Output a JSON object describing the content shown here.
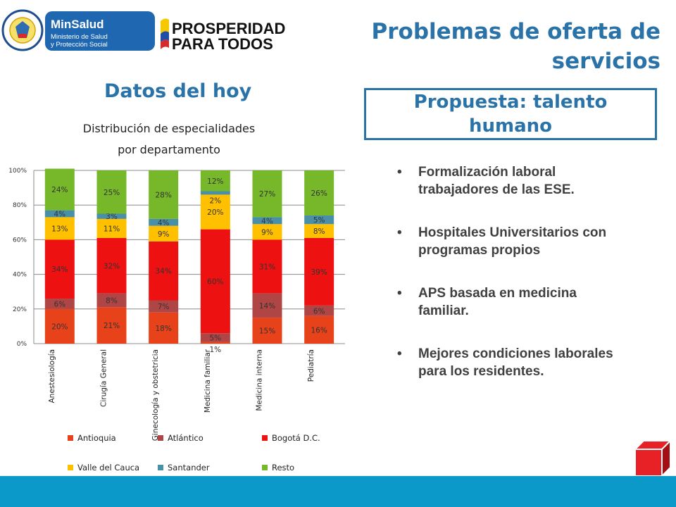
{
  "header": {
    "logo_minsalud": {
      "seal_text": "REPÚBLICA DE COLOMBIA",
      "brand": "MinSalud",
      "line1": "Ministerio de Salud",
      "line2": "y Protección Social"
    },
    "logo_prosperidad": {
      "line1": "PROSPERIDAD",
      "line2": "PARA TODOS"
    },
    "title": "Problemas de oferta de servicios"
  },
  "left_heading": "Datos del hoy",
  "proposal_heading": "Propuesta: talento humano",
  "bullets": [
    "Formalización laboral trabajadores de las ESE.",
    "Hospitales Universitarios con programas propios",
    "APS basada en medicina familiar.",
    "Mejores condiciones laborales para los residentes."
  ],
  "colors": {
    "accent_blue": "#2a73a8",
    "bottom_bar": "#0b99c9",
    "cube_red": "#e82127"
  },
  "chart_data": {
    "type": "bar",
    "stacked": true,
    "percent": true,
    "title": "Distribución de especialidades por departamento",
    "categories": [
      "Anestesiología",
      "Cirugía General",
      "Ginecología y obstetricia",
      "Medicina familiar",
      "Medicina interna",
      "Pediatría"
    ],
    "y_ticks": [
      "0%",
      "20%",
      "40%",
      "60%",
      "80%",
      "100%"
    ],
    "ylim": [
      0,
      100
    ],
    "grid": true,
    "legend_position": "bottom",
    "series": [
      {
        "name": "Antioquia",
        "color": "#e8421a",
        "values": [
          20,
          21,
          18,
          1,
          15,
          16
        ],
        "labels": [
          "20%",
          "21%",
          "18%",
          "1%",
          "15%",
          "16%"
        ]
      },
      {
        "name": "Atlántico",
        "color": "#b04545",
        "values": [
          6,
          8,
          7,
          5,
          14,
          6
        ],
        "labels": [
          "6%",
          "8%",
          "7%",
          "5%",
          "14%",
          "6%"
        ]
      },
      {
        "name": "Bogotá D.C.",
        "color": "#ee1111",
        "values": [
          34,
          32,
          34,
          60,
          31,
          39
        ],
        "labels": [
          "34%",
          "32%",
          "34%",
          "60%",
          "31%",
          "39%"
        ]
      },
      {
        "name": "Valle del Cauca",
        "color": "#ffc000",
        "values": [
          13,
          11,
          9,
          20,
          9,
          8
        ],
        "labels": [
          "13%",
          "11%",
          "9%",
          "20%",
          "9%",
          "8%"
        ]
      },
      {
        "name": "Santander",
        "color": "#4a8fa8",
        "values": [
          4,
          3,
          4,
          2,
          4,
          5
        ],
        "labels": [
          "4%",
          "3%",
          "4%",
          "2%",
          "4%",
          "5%"
        ]
      },
      {
        "name": "Resto",
        "color": "#76b82a",
        "values": [
          24,
          25,
          28,
          12,
          27,
          26
        ],
        "labels": [
          "24%",
          "25%",
          "28%",
          "12%",
          "27%",
          "26%"
        ]
      }
    ]
  }
}
